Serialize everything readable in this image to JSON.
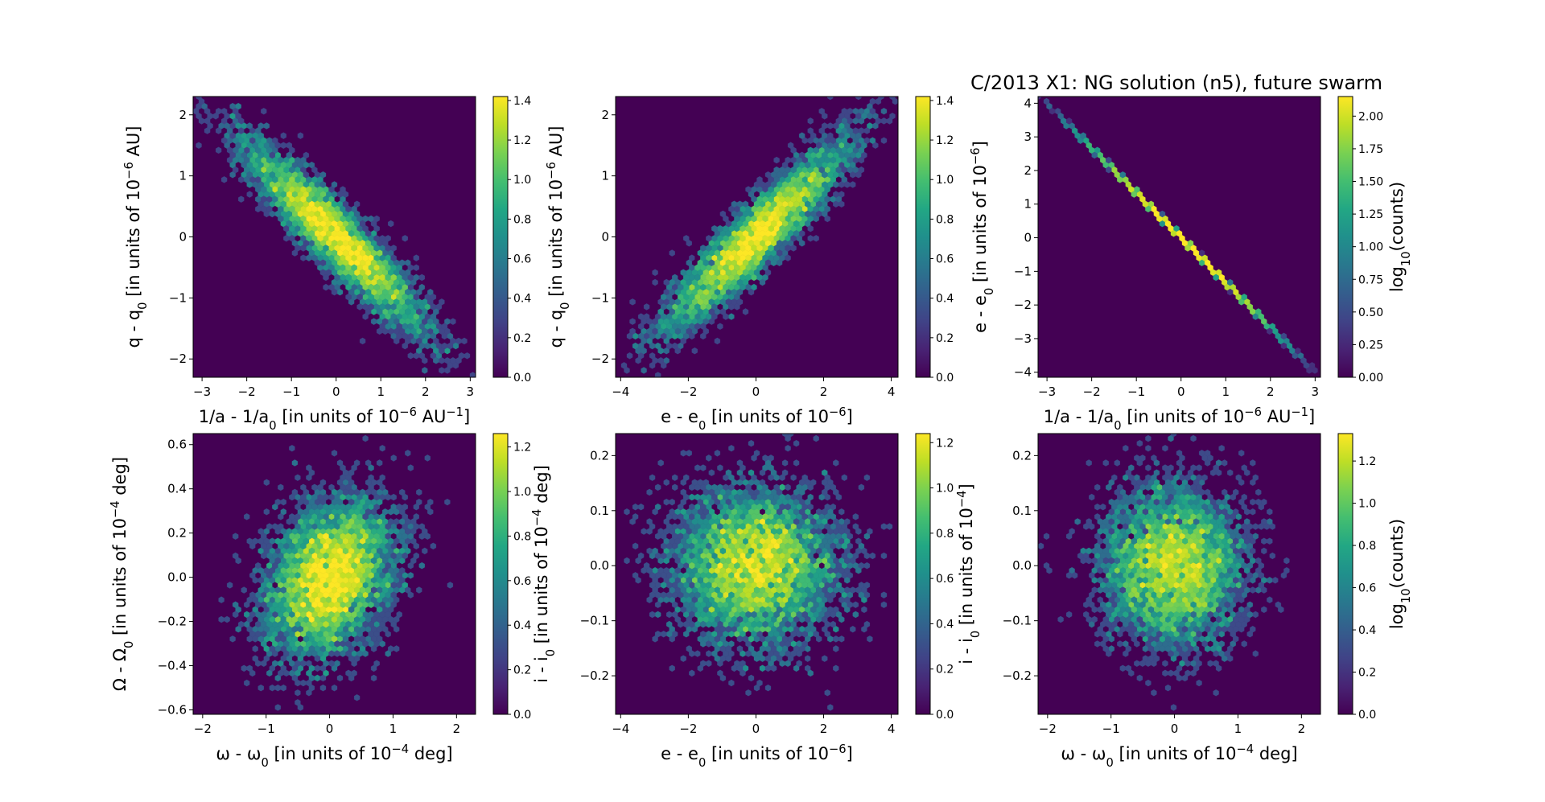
{
  "title": "C/2013 X1: NG solution (n5), future swarm",
  "colors": {
    "background": "#ffffff",
    "colormap": "viridis",
    "empty_cell": "#440154"
  },
  "chart_data": [
    {
      "type": "hexbin",
      "xlabel": [
        {
          "t": "1/a - 1/a"
        },
        {
          "sub": "0"
        },
        {
          "t": " [in units of 10"
        },
        {
          "sup": "−6"
        },
        {
          "t": " AU"
        },
        {
          "sup": "−1"
        },
        {
          "t": "]"
        }
      ],
      "ylabel": [
        {
          "t": "q - q"
        },
        {
          "sub": "0"
        },
        {
          "t": " [in units of 10"
        },
        {
          "sup": "−6"
        },
        {
          "t": " AU]"
        }
      ],
      "xlim": [
        -3.2,
        3.12
      ],
      "ylim": [
        -2.3,
        2.3
      ],
      "xticks": [
        "−3",
        "−2",
        "−1",
        "0",
        "1",
        "2",
        "3"
      ],
      "yticks": [
        "−2",
        "−1",
        "0",
        "1",
        "2"
      ],
      "shape": "narrow band, negative correlation",
      "colorbar": {
        "min": 0,
        "max": 1.42,
        "ticks": [
          "0.0",
          "0.2",
          "0.4",
          "0.6",
          "0.8",
          "1.0",
          "1.2",
          "1.4"
        ],
        "label": []
      }
    },
    {
      "type": "hexbin",
      "xlabel": [
        {
          "t": "e - e"
        },
        {
          "sub": "0"
        },
        {
          "t": " [in units of 10"
        },
        {
          "sup": "−6"
        },
        {
          "t": "]"
        }
      ],
      "ylabel": [
        {
          "t": "q - q"
        },
        {
          "sub": "0"
        },
        {
          "t": " [in units of 10"
        },
        {
          "sup": "−6"
        },
        {
          "t": " AU]"
        }
      ],
      "xlim": [
        -4.15,
        4.2
      ],
      "ylim": [
        -2.3,
        2.3
      ],
      "xticks": [
        "−4",
        "−2",
        "0",
        "2",
        "4"
      ],
      "yticks": [
        "−2",
        "−1",
        "0",
        "1",
        "2"
      ],
      "shape": "narrow band, positive correlation",
      "colorbar": {
        "min": 0,
        "max": 1.42,
        "ticks": [
          "0.0",
          "0.2",
          "0.4",
          "0.6",
          "0.8",
          "1.0",
          "1.2",
          "1.4"
        ],
        "label": []
      }
    },
    {
      "type": "hexbin",
      "xlabel": [
        {
          "t": "1/a - 1/a"
        },
        {
          "sub": "0"
        },
        {
          "t": " [in units of 10"
        },
        {
          "sup": "−6"
        },
        {
          "t": " AU"
        },
        {
          "sup": "−1"
        },
        {
          "t": "]"
        }
      ],
      "ylabel": [
        {
          "t": "e - e"
        },
        {
          "sub": "0"
        },
        {
          "t": " [in units of 10"
        },
        {
          "sup": "−6"
        },
        {
          "t": "]"
        }
      ],
      "xlim": [
        -3.2,
        3.12
      ],
      "ylim": [
        -4.15,
        4.2
      ],
      "xticks": [
        "−3",
        "−2",
        "−1",
        "0",
        "1",
        "2",
        "3"
      ],
      "yticks": [
        "−4",
        "−3",
        "−2",
        "−1",
        "0",
        "1",
        "2",
        "3",
        "4"
      ],
      "shape": "thin straight line, negative slope",
      "colorbar": {
        "min": 0,
        "max": 2.15,
        "ticks": [
          "0.00",
          "0.25",
          "0.50",
          "0.75",
          "1.00",
          "1.25",
          "1.50",
          "1.75",
          "2.00"
        ],
        "label": [
          {
            "t": "log"
          },
          {
            "sub": "10"
          },
          {
            "t": "(counts)"
          }
        ]
      }
    },
    {
      "type": "hexbin",
      "xlabel": [
        {
          "t": "ω - ω"
        },
        {
          "sub": "0"
        },
        {
          "t": " [in units of 10"
        },
        {
          "sup": "−4"
        },
        {
          "t": " deg]"
        }
      ],
      "ylabel": [
        {
          "t": "Ω - Ω"
        },
        {
          "sub": "0"
        },
        {
          "t": " [in units of 10"
        },
        {
          "sup": "−4"
        },
        {
          "t": " deg]"
        }
      ],
      "xlim": [
        -2.15,
        2.3
      ],
      "ylim": [
        -0.62,
        0.65
      ],
      "xticks": [
        "−2",
        "−1",
        "0",
        "1",
        "2"
      ],
      "yticks": [
        "−0.6",
        "−0.4",
        "−0.2",
        "0.0",
        "0.2",
        "0.4",
        "0.6"
      ],
      "shape": "elliptical cloud, slight positive tilt",
      "colorbar": {
        "min": 0,
        "max": 1.26,
        "ticks": [
          "0.0",
          "0.2",
          "0.4",
          "0.6",
          "0.8",
          "1.0",
          "1.2"
        ],
        "label": []
      }
    },
    {
      "type": "hexbin",
      "xlabel": [
        {
          "t": "e - e"
        },
        {
          "sub": "0"
        },
        {
          "t": " [in units of 10"
        },
        {
          "sup": "−6"
        },
        {
          "t": "]"
        }
      ],
      "ylabel": [
        {
          "t": "i - i"
        },
        {
          "sub": "0"
        },
        {
          "t": " [in units of 10"
        },
        {
          "sup": "−4"
        },
        {
          "t": " deg]"
        }
      ],
      "xlim": [
        -4.15,
        4.2
      ],
      "ylim": [
        -0.27,
        0.24
      ],
      "xticks": [
        "−4",
        "−2",
        "0",
        "2",
        "4"
      ],
      "yticks": [
        "−0.2",
        "−0.1",
        "0.0",
        "0.1",
        "0.2"
      ],
      "shape": "round cloud, uncorrelated",
      "colorbar": {
        "min": 0,
        "max": 1.24,
        "ticks": [
          "0.0",
          "0.2",
          "0.4",
          "0.6",
          "0.8",
          "1.0",
          "1.2"
        ],
        "label": []
      }
    },
    {
      "type": "hexbin",
      "xlabel": [
        {
          "t": "ω - ω"
        },
        {
          "sub": "0"
        },
        {
          "t": " [in units of 10"
        },
        {
          "sup": "−4"
        },
        {
          "t": " deg]"
        }
      ],
      "ylabel": [
        {
          "t": "i - i"
        },
        {
          "sub": "0"
        },
        {
          "t": " [in units of 10"
        },
        {
          "sup": "−4"
        },
        {
          "t": "]"
        }
      ],
      "xlim": [
        -2.15,
        2.3
      ],
      "ylim": [
        -0.27,
        0.24
      ],
      "xticks": [
        "−2",
        "−1",
        "0",
        "1",
        "2"
      ],
      "yticks": [
        "−0.2",
        "−0.1",
        "0.0",
        "0.1",
        "0.2"
      ],
      "shape": "round cloud, uncorrelated",
      "colorbar": {
        "min": 0,
        "max": 1.33,
        "ticks": [
          "0.0",
          "0.2",
          "0.4",
          "0.6",
          "0.8",
          "1.0",
          "1.2"
        ],
        "label": [
          {
            "t": "log"
          },
          {
            "sub": "10"
          },
          {
            "t": "(counts)"
          }
        ]
      }
    }
  ]
}
